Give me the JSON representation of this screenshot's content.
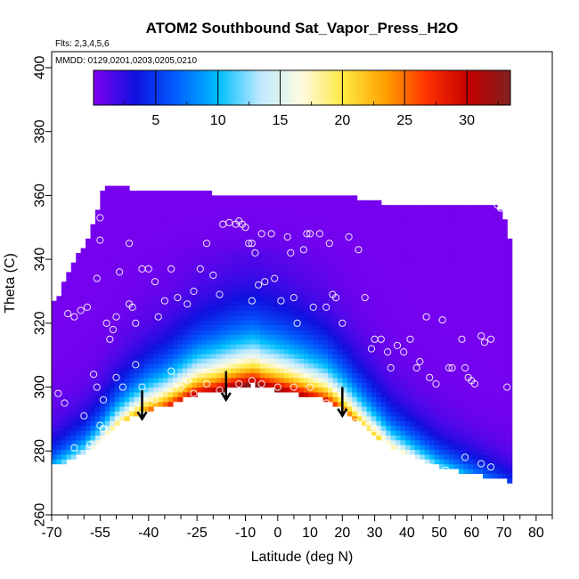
{
  "chart_data": {
    "type": "heatmap",
    "title": "ATOM2 Southbound Sat_Vapor_Press_H2O",
    "flights_label": "Flts: 2,3,4,5,6",
    "mmdd_label": "MMDD: 0129,0201,0203,0205,0210",
    "xlabel": "Latitude (deg N)",
    "ylabel": "Theta (C)",
    "xlim": [
      -70,
      85
    ],
    "ylim": [
      260,
      405
    ],
    "x_ticks": [
      -70,
      -55,
      -40,
      -25,
      -10,
      0,
      10,
      20,
      30,
      40,
      50,
      60,
      70,
      80
    ],
    "x_minor_ticks": [
      -65,
      -60,
      -50,
      -45,
      -35,
      -30,
      -20,
      -15,
      -5,
      5,
      15,
      25,
      35,
      45,
      55,
      65,
      75,
      85
    ],
    "y_ticks": [
      260,
      280,
      300,
      320,
      340,
      360,
      380,
      400
    ],
    "colorbar": {
      "range": [
        0,
        33.5
      ],
      "ticks": [
        5,
        10,
        15,
        20,
        25,
        30
      ],
      "colors": [
        "#8000f0",
        "#1010e0",
        "#0060ff",
        "#00bfff",
        "#bfe9ff",
        "#fffbe0",
        "#ffe840",
        "#ffa000",
        "#ff3000",
        "#c40000",
        "#802020"
      ]
    },
    "grid_x_step": 1.5,
    "grid_y_step": 1.5,
    "top_boundary": [
      [
        -70,
        326
      ],
      [
        -68,
        328
      ],
      [
        -66,
        333
      ],
      [
        -64,
        337
      ],
      [
        -62,
        341
      ],
      [
        -60,
        344
      ],
      [
        -58,
        349
      ],
      [
        -56,
        354
      ],
      [
        -55,
        360
      ],
      [
        -54,
        362
      ],
      [
        -53,
        363
      ],
      [
        -50,
        363
      ],
      [
        -45,
        362
      ],
      [
        -30,
        362
      ],
      [
        -21,
        362
      ],
      [
        -20,
        360
      ],
      [
        -10,
        360
      ],
      [
        0,
        360
      ],
      [
        10,
        360
      ],
      [
        20,
        360
      ],
      [
        30,
        358
      ],
      [
        40,
        357
      ],
      [
        50,
        357
      ],
      [
        60,
        357
      ],
      [
        67,
        357
      ],
      [
        68,
        356
      ],
      [
        69,
        355
      ],
      [
        71,
        352
      ],
      [
        72,
        345
      ]
    ],
    "bottom_boundary": [
      [
        -70,
        275
      ],
      [
        -60,
        279
      ],
      [
        -55,
        283
      ],
      [
        -50,
        288
      ],
      [
        -45,
        291
      ],
      [
        -40,
        293
      ],
      [
        -35,
        294
      ],
      [
        -30,
        296
      ],
      [
        -25,
        298
      ],
      [
        -20,
        298.5
      ],
      [
        -15,
        299.5
      ],
      [
        -10,
        300.5
      ],
      [
        -7,
        301
      ],
      [
        -5,
        300
      ],
      [
        0,
        299
      ],
      [
        5,
        298
      ],
      [
        10,
        297
      ],
      [
        15,
        296
      ],
      [
        20,
        293
      ],
      [
        25,
        289
      ],
      [
        30,
        285
      ],
      [
        35,
        281
      ],
      [
        40,
        279
      ],
      [
        45,
        277
      ],
      [
        50,
        275
      ],
      [
        55,
        274
      ],
      [
        60,
        273
      ],
      [
        65,
        272
      ],
      [
        70,
        271
      ],
      [
        72,
        270
      ]
    ],
    "field_model": {
      "peak_lat": -8,
      "peak_value": 33,
      "lat_halfwidth": 58,
      "level_halfwidth": 42,
      "level_decay_k": 0.085,
      "top_plateau_level": 342,
      "background_value": 0.3
    },
    "observation_points": [
      [
        -69,
        330
      ],
      [
        -68,
        337
      ],
      [
        -67,
        334
      ],
      [
        -65,
        323
      ],
      [
        -63,
        322
      ],
      [
        -61,
        324
      ],
      [
        -59,
        325
      ],
      [
        -56,
        334
      ],
      [
        -55,
        353
      ],
      [
        -55,
        346
      ],
      [
        -54,
        296
      ],
      [
        -53,
        320
      ],
      [
        -52,
        315
      ],
      [
        -51,
        318
      ],
      [
        -50,
        322
      ],
      [
        -49,
        336
      ],
      [
        -46,
        345
      ],
      [
        -46,
        326
      ],
      [
        -45,
        325
      ],
      [
        -44,
        320
      ],
      [
        -42,
        337
      ],
      [
        -40,
        337
      ],
      [
        -38,
        333
      ],
      [
        -37,
        322
      ],
      [
        -35,
        327
      ],
      [
        -33,
        337
      ],
      [
        -31,
        328
      ],
      [
        -28,
        326
      ],
      [
        -26,
        330
      ],
      [
        -24,
        337
      ],
      [
        -22,
        345
      ],
      [
        -20,
        335
      ],
      [
        -18,
        329
      ],
      [
        -17,
        351
      ],
      [
        -15,
        351.5
      ],
      [
        -13,
        351
      ],
      [
        -12,
        352
      ],
      [
        -11,
        351
      ],
      [
        -10,
        350
      ],
      [
        -9,
        345
      ],
      [
        -8,
        345
      ],
      [
        -7,
        342
      ],
      [
        -5,
        348
      ],
      [
        -2,
        348
      ],
      [
        -4,
        333
      ],
      [
        -6,
        332
      ],
      [
        -8,
        327
      ],
      [
        -1,
        334
      ],
      [
        1,
        327
      ],
      [
        3,
        347
      ],
      [
        4,
        342
      ],
      [
        5,
        328
      ],
      [
        6,
        320
      ],
      [
        8,
        343
      ],
      [
        9,
        348
      ],
      [
        10,
        348
      ],
      [
        11,
        325
      ],
      [
        13,
        348
      ],
      [
        15,
        325
      ],
      [
        16,
        345
      ],
      [
        17,
        329
      ],
      [
        18,
        328
      ],
      [
        20,
        320
      ],
      [
        22,
        347
      ],
      [
        25,
        343
      ],
      [
        27,
        328
      ],
      [
        29,
        312
      ],
      [
        30,
        315
      ],
      [
        32,
        315
      ],
      [
        34,
        311
      ],
      [
        35,
        306
      ],
      [
        37,
        313
      ],
      [
        39,
        311
      ],
      [
        41,
        315
      ],
      [
        43,
        306
      ],
      [
        44,
        308
      ],
      [
        46,
        322
      ],
      [
        47,
        303
      ],
      [
        49,
        301
      ],
      [
        51,
        321
      ],
      [
        53,
        306
      ],
      [
        54,
        306
      ],
      [
        57,
        315
      ],
      [
        58,
        306
      ],
      [
        59,
        303
      ],
      [
        60,
        302
      ],
      [
        61,
        301
      ],
      [
        63,
        316
      ],
      [
        64,
        314
      ],
      [
        66,
        315
      ],
      [
        68,
        357
      ],
      [
        69,
        356
      ],
      [
        71,
        300
      ],
      [
        -68,
        298
      ],
      [
        -66,
        295
      ],
      [
        -60,
        291
      ],
      [
        -57,
        304
      ],
      [
        -56,
        300
      ],
      [
        -55,
        288
      ],
      [
        -54,
        287
      ],
      [
        -53,
        284
      ],
      [
        -50,
        303
      ],
      [
        -48,
        300
      ],
      [
        -44,
        307
      ],
      [
        -42,
        300
      ],
      [
        -38,
        296
      ],
      [
        -33,
        305
      ],
      [
        -30,
        300
      ],
      [
        -28,
        302
      ],
      [
        -26,
        298
      ],
      [
        -22,
        301
      ],
      [
        -18,
        299
      ],
      [
        -12,
        301
      ],
      [
        -8,
        302
      ],
      [
        -5,
        301
      ],
      [
        0,
        300
      ],
      [
        5,
        300
      ],
      [
        10,
        300
      ],
      [
        15,
        295
      ],
      [
        20,
        292
      ],
      [
        24,
        289
      ],
      [
        28,
        288
      ],
      [
        30,
        287
      ],
      [
        33,
        281
      ],
      [
        38,
        277
      ],
      [
        43,
        276
      ],
      [
        47,
        275
      ],
      [
        52,
        274
      ],
      [
        58,
        278
      ],
      [
        63,
        276
      ],
      [
        66,
        275
      ],
      [
        -68,
        274
      ],
      [
        -63,
        281
      ],
      [
        -58,
        282
      ]
    ],
    "arrows": [
      {
        "lat": -42,
        "top": 299,
        "bottom": 290
      },
      {
        "lat": -16,
        "top": 305,
        "bottom": 296
      },
      {
        "lat": 20,
        "top": 300,
        "bottom": 291
      }
    ]
  }
}
